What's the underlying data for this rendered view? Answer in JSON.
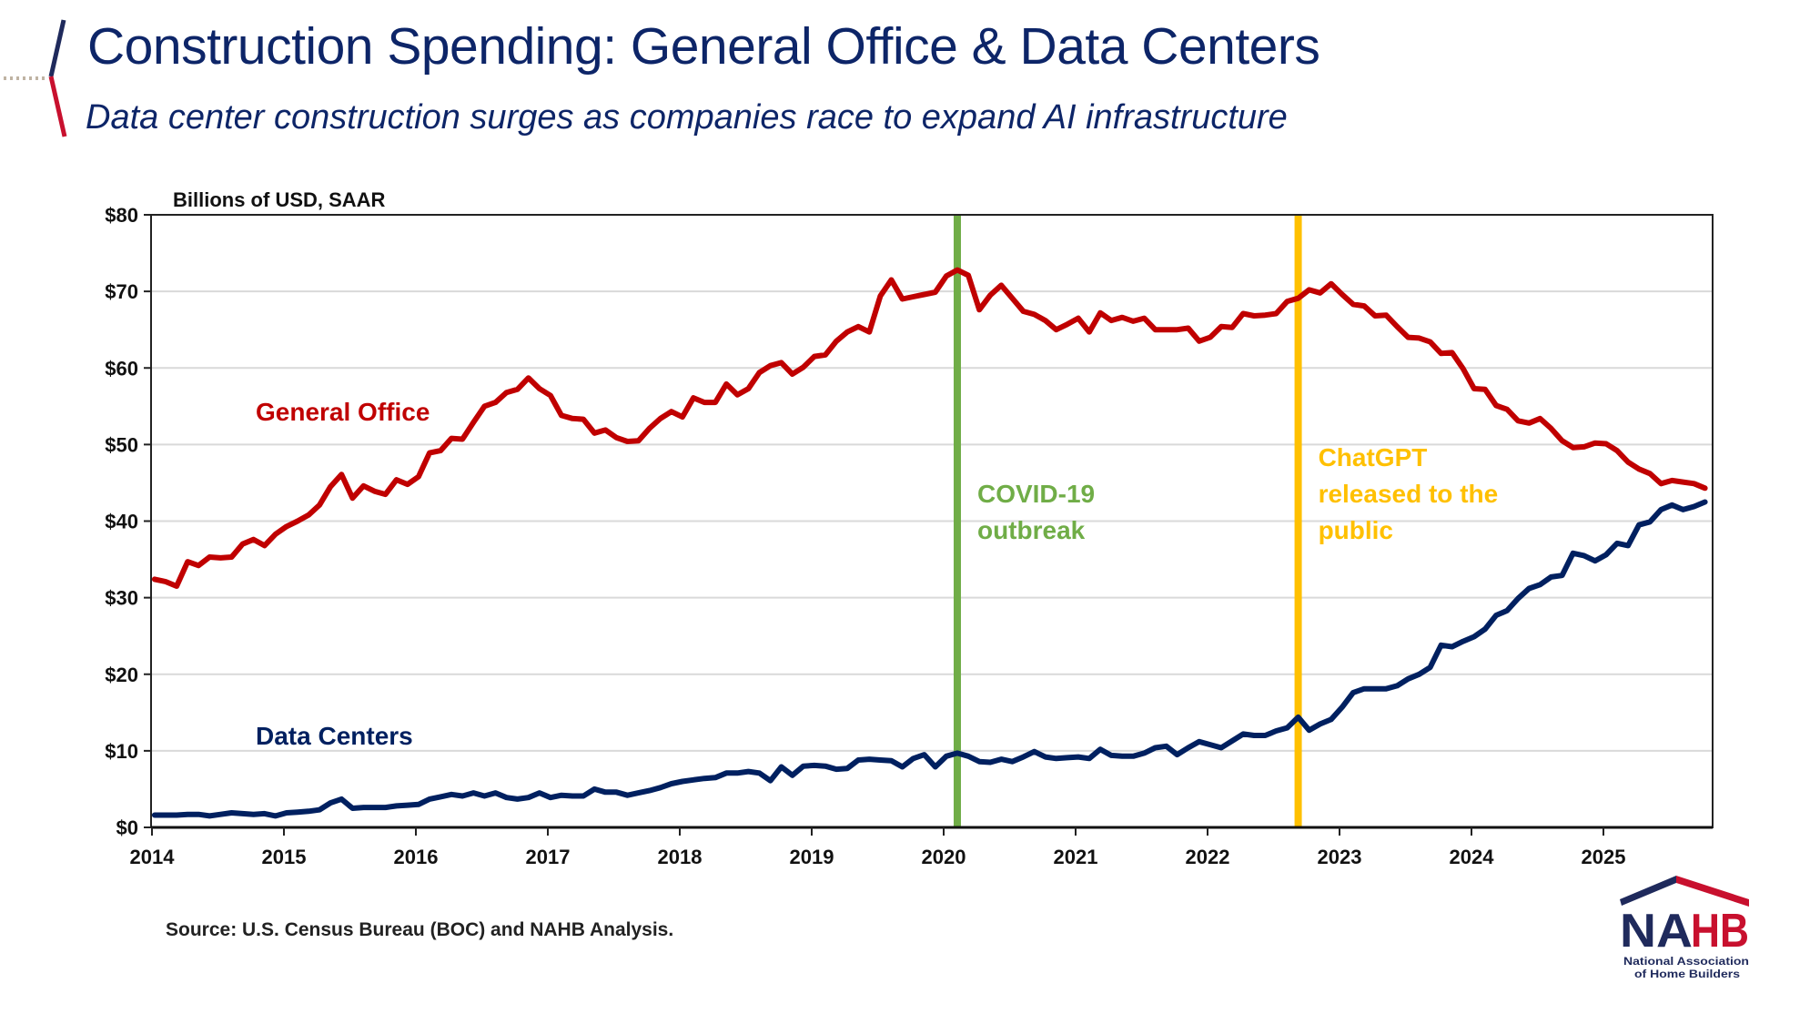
{
  "header": {
    "title": "Construction Spending: General Office & Data Centers",
    "subtitle": "Data center construction surges as companies race to expand AI infrastructure"
  },
  "footer": {
    "source": "Source: U.S. Census Bureau (BOC) and NAHB Analysis."
  },
  "logo": {
    "text": "NAHB",
    "tagline_1": "National Association",
    "tagline_2": "of Home Builders",
    "colors": {
      "navy": "#1f2a5c",
      "red": "#c8102e"
    }
  },
  "chart_data": {
    "type": "line",
    "title": "",
    "ylabel": "Billions of USD, SAAR",
    "xlabel": "",
    "ylim": [
      0,
      80
    ],
    "yticks": [
      0,
      10,
      20,
      30,
      40,
      50,
      60,
      70,
      80
    ],
    "ytick_labels": [
      "$0",
      "$10",
      "$20",
      "$30",
      "$40",
      "$50",
      "$60",
      "$70",
      "$80"
    ],
    "xticks": [
      "2014",
      "2015",
      "2016",
      "2017",
      "2018",
      "2019",
      "2020",
      "2021",
      "2022",
      "2023",
      "2024",
      "2025"
    ],
    "x_range": [
      "2014-01",
      "2025-10"
    ],
    "grid": "horizontal",
    "legend": "inline labels",
    "x_start": "2014-01",
    "x_frequency": "monthly",
    "series": [
      {
        "name": "General Office",
        "color": "#c00000",
        "values": [
          32.4,
          32.1,
          31.5,
          34.7,
          34.2,
          35.3,
          35.2,
          35.3,
          37.0,
          37.6,
          36.8,
          38.3,
          39.3,
          40.0,
          40.8,
          42.1,
          44.5,
          46.1,
          43.0,
          44.6,
          43.9,
          43.5,
          45.4,
          44.8,
          45.8,
          48.9,
          49.2,
          50.8,
          50.7,
          52.9,
          55.0,
          55.5,
          56.8,
          57.2,
          58.7,
          57.3,
          56.4,
          53.8,
          53.4,
          53.3,
          51.5,
          51.9,
          50.9,
          50.4,
          50.5,
          52.1,
          53.4,
          54.3,
          53.6,
          56.1,
          55.5,
          55.5,
          57.9,
          56.5,
          57.3,
          59.4,
          60.3,
          60.7,
          59.2,
          60.1,
          61.5,
          61.7,
          63.5,
          64.7,
          65.4,
          64.7,
          69.4,
          71.5,
          69.0,
          69.3,
          69.6,
          69.9,
          72.0,
          72.8,
          72.1,
          67.6,
          69.5,
          70.8,
          69.1,
          67.4,
          67.0,
          66.2,
          65.0,
          65.7,
          66.5,
          64.7,
          67.2,
          66.2,
          66.6,
          66.1,
          66.5,
          65.0,
          65.0,
          65.0,
          65.2,
          63.5,
          64.0,
          65.4,
          65.3,
          67.1,
          66.8,
          66.9,
          67.1,
          68.7,
          69.1,
          70.2,
          69.8,
          71.0,
          69.6,
          68.3,
          68.1,
          66.8,
          66.9,
          65.4,
          64.0,
          63.9,
          63.4,
          61.9,
          62.0,
          59.9,
          57.3,
          57.2,
          55.1,
          54.6,
          53.1,
          52.8,
          53.4,
          52.1,
          50.5,
          49.6,
          49.7,
          50.2,
          50.1,
          49.2,
          47.7,
          46.8,
          46.2,
          44.9,
          45.3,
          45.1,
          44.9,
          44.3
        ]
      },
      {
        "name": "Data Centers",
        "color": "#002060",
        "values": [
          1.6,
          1.6,
          1.6,
          1.7,
          1.7,
          1.5,
          1.7,
          1.9,
          1.8,
          1.7,
          1.8,
          1.5,
          1.9,
          2.0,
          2.1,
          2.3,
          3.2,
          3.7,
          2.5,
          2.6,
          2.6,
          2.6,
          2.8,
          2.9,
          3.0,
          3.7,
          4.0,
          4.3,
          4.1,
          4.5,
          4.1,
          4.5,
          3.9,
          3.7,
          3.9,
          4.5,
          3.9,
          4.2,
          4.1,
          4.1,
          5.0,
          4.6,
          4.6,
          4.2,
          4.5,
          4.8,
          5.2,
          5.7,
          6.0,
          6.2,
          6.4,
          6.5,
          7.1,
          7.1,
          7.3,
          7.1,
          6.1,
          7.9,
          6.8,
          8.0,
          8.1,
          8.0,
          7.6,
          7.7,
          8.8,
          8.9,
          8.8,
          8.7,
          7.9,
          9.0,
          9.5,
          7.9,
          9.3,
          9.7,
          9.3,
          8.6,
          8.5,
          8.9,
          8.6,
          9.2,
          9.9,
          9.2,
          9.0,
          9.1,
          9.2,
          9.0,
          10.2,
          9.4,
          9.3,
          9.3,
          9.7,
          10.4,
          10.6,
          9.5,
          10.4,
          11.2,
          10.8,
          10.4,
          11.3,
          12.2,
          12.0,
          12.0,
          12.6,
          13.0,
          14.4,
          12.7,
          13.5,
          14.1,
          15.7,
          17.6,
          18.1,
          18.1,
          18.1,
          18.5,
          19.4,
          20.0,
          20.9,
          23.8,
          23.6,
          24.3,
          24.9,
          25.9,
          27.7,
          28.3,
          29.9,
          31.2,
          31.7,
          32.7,
          32.9,
          35.8,
          35.5,
          34.8,
          35.6,
          37.1,
          36.8,
          39.5,
          39.9,
          41.5,
          42.1,
          41.5,
          41.9,
          42.5
        ]
      }
    ],
    "annotations": [
      {
        "date": "2020-02",
        "color": "#70ad47",
        "lines": [
          "COVID-19",
          "outbreak"
        ]
      },
      {
        "date": "2022-09",
        "color": "#ffc000",
        "lines": [
          "ChatGPT",
          "released to the",
          "public"
        ]
      }
    ]
  }
}
